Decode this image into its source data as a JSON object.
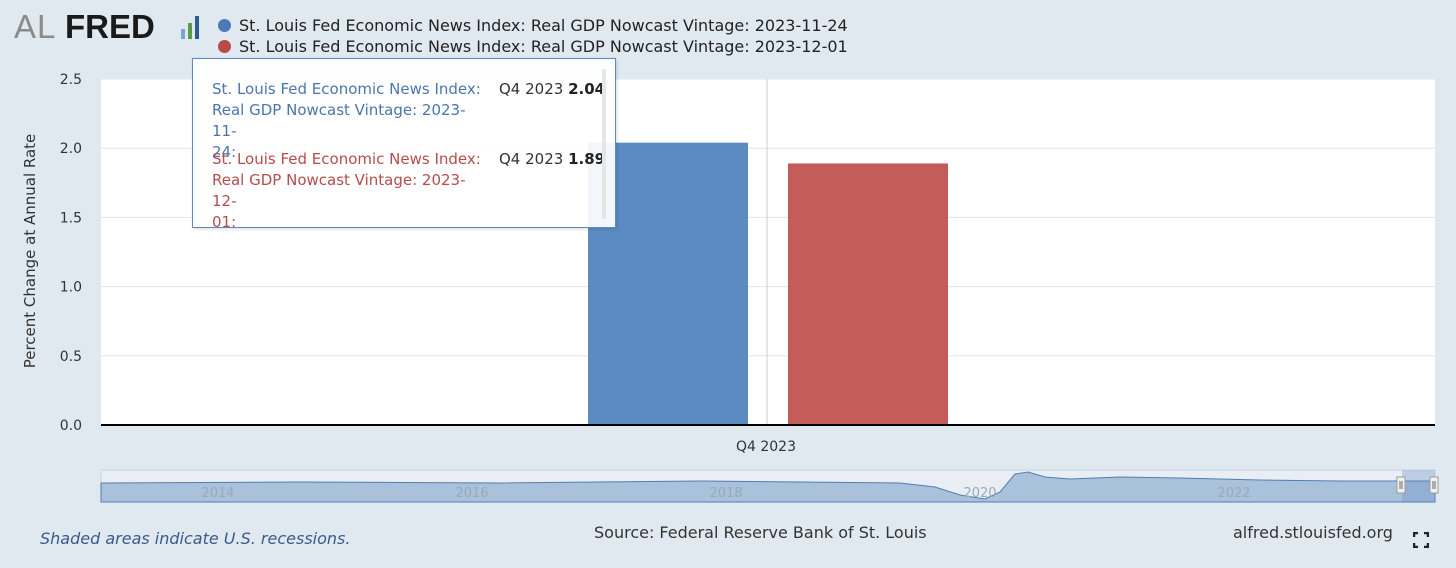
{
  "logo": {
    "text_al": "AL",
    "text_fred": "FRED"
  },
  "chart_data": {
    "type": "bar",
    "categories": [
      "Q4 2023"
    ],
    "series": [
      {
        "name": "St. Louis Fed Economic News Index: Real GDP Nowcast Vintage: 2023-11-24",
        "values": [
          2.04
        ],
        "color": "#5b8bc0"
      },
      {
        "name": "St. Louis Fed Economic News Index: Real GDP Nowcast Vintage: 2023-12-01",
        "values": [
          1.89
        ],
        "color": "#c45c5a"
      }
    ],
    "ylabel": "Percent Change at Annual Rate",
    "ylim": [
      0,
      2.5
    ],
    "yticks": [
      "0.0",
      "0.5",
      "1.0",
      "1.5",
      "2.0",
      "2.5"
    ],
    "grid": true,
    "legend_position": "top-left",
    "navigator": {
      "tick_labels": [
        "2014",
        "2016",
        "2018",
        "2020",
        "2022"
      ]
    }
  },
  "tooltip": {
    "rows": [
      {
        "name_lines": [
          "St. Louis Fed Economic News Index:",
          "Real GDP Nowcast Vintage: 2023-11-",
          "24:"
        ],
        "period": "Q4 2023 ",
        "value": "2.04",
        "color": "#4a76ad"
      },
      {
        "name_lines": [
          "St. Louis Fed Economic News Index:",
          "Real GDP Nowcast Vintage: 2023-12-",
          "01:"
        ],
        "period": "Q4 2023 ",
        "value": "1.89",
        "color": "#b54d4a"
      }
    ]
  },
  "footer": {
    "recession_note": "Shaded areas indicate U.S. recessions.",
    "source": "Source: Federal Reserve Bank of St. Louis",
    "url": "alfred.stlouisfed.org"
  },
  "icons": {
    "fullscreen": "fullscreen-icon"
  }
}
